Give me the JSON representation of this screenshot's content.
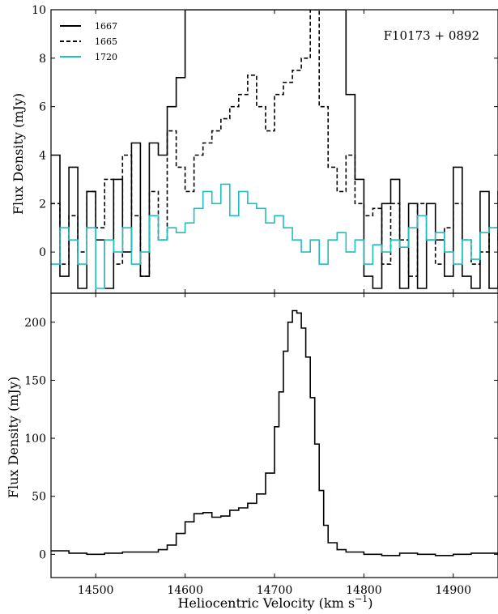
{
  "figure": {
    "object_label": "F10173 + 0892",
    "xlabel": "Heliocentric Velocity (km s",
    "xlabel_sup": "−1",
    "xlabel_close": ")"
  },
  "colors": {
    "black": "#000000",
    "cyan": "#1fbfbf"
  },
  "chart_data": [
    {
      "type": "line",
      "panel": "top",
      "ylabel": "Flux Density (mJy)",
      "xlim": [
        14450,
        14950
      ],
      "ylim": [
        -1.7,
        10
      ],
      "x_ticks": [
        14500,
        14600,
        14700,
        14800,
        14900
      ],
      "y_ticks": [
        0,
        2,
        4,
        6,
        8,
        10
      ],
      "legend": {
        "placement": "top-left"
      },
      "series": [
        {
          "name": "1667",
          "style": "solid",
          "color": "#000000",
          "x": [
            14450,
            14460,
            14470,
            14480,
            14490,
            14500,
            14510,
            14520,
            14530,
            14540,
            14550,
            14560,
            14570,
            14580,
            14590,
            14600,
            14610,
            14620,
            14630,
            14640,
            14650,
            14660,
            14670,
            14680,
            14690,
            14700,
            14710,
            14720,
            14730,
            14740,
            14750,
            14760,
            14770,
            14780,
            14790,
            14800,
            14810,
            14820,
            14830,
            14840,
            14850,
            14860,
            14870,
            14880,
            14890,
            14900,
            14910,
            14920,
            14930,
            14940,
            14950
          ],
          "y": [
            4.0,
            -1.0,
            3.5,
            -1.5,
            2.5,
            0.5,
            -1.5,
            3.0,
            0.0,
            4.5,
            -1.0,
            4.5,
            4.0,
            6.0,
            7.2,
            10.0,
            10.0,
            10.0,
            10.0,
            10.0,
            10.0,
            10.0,
            10.0,
            10.0,
            10.0,
            10.0,
            10.0,
            10.0,
            10.0,
            10.0,
            10.0,
            10.0,
            10.0,
            6.5,
            3.0,
            -1.0,
            -1.5,
            2.0,
            3.0,
            -1.5,
            2.0,
            -1.5,
            2.0,
            0.5,
            -1.0,
            3.5,
            -1.0,
            -1.5,
            2.5,
            -1.5,
            2.5
          ]
        },
        {
          "name": "1665",
          "style": "dashed",
          "color": "#000000",
          "x": [
            14450,
            14460,
            14470,
            14480,
            14490,
            14500,
            14510,
            14520,
            14530,
            14540,
            14550,
            14560,
            14570,
            14580,
            14590,
            14600,
            14610,
            14620,
            14630,
            14640,
            14650,
            14660,
            14670,
            14680,
            14690,
            14700,
            14710,
            14720,
            14730,
            14740,
            14750,
            14760,
            14770,
            14780,
            14790,
            14800,
            14810,
            14820,
            14830,
            14840,
            14850,
            14860,
            14870,
            14880,
            14890,
            14900,
            14910,
            14920,
            14930,
            14940,
            14950
          ],
          "y": [
            2.0,
            -0.5,
            1.5,
            0.0,
            2.5,
            1.0,
            3.0,
            -0.5,
            4.0,
            1.5,
            -1.0,
            2.5,
            0.5,
            5.0,
            3.5,
            2.5,
            4.0,
            4.5,
            5.0,
            5.5,
            6.0,
            6.5,
            7.3,
            6.0,
            5.0,
            6.5,
            7.0,
            7.5,
            8.0,
            10.0,
            6.0,
            3.5,
            2.5,
            4.0,
            2.0,
            1.5,
            1.8,
            -0.5,
            2.0,
            0.5,
            -1.0,
            2.0,
            0.5,
            -0.5,
            1.0,
            2.0,
            0.5,
            -0.5,
            0.0,
            1.0,
            0.5
          ]
        },
        {
          "name": "1720",
          "style": "solid",
          "color": "#1fbfbf",
          "x": [
            14450,
            14460,
            14470,
            14480,
            14490,
            14500,
            14510,
            14520,
            14530,
            14540,
            14550,
            14560,
            14570,
            14580,
            14590,
            14600,
            14610,
            14620,
            14630,
            14640,
            14650,
            14660,
            14670,
            14680,
            14690,
            14700,
            14710,
            14720,
            14730,
            14740,
            14750,
            14760,
            14770,
            14780,
            14790,
            14800,
            14810,
            14820,
            14830,
            14840,
            14850,
            14860,
            14870,
            14880,
            14890,
            14900,
            14910,
            14920,
            14930,
            14940,
            14950
          ],
          "y": [
            -0.5,
            1.0,
            0.5,
            -0.5,
            1.0,
            -1.5,
            0.5,
            0.0,
            1.0,
            -0.5,
            0.0,
            1.5,
            0.5,
            1.0,
            0.8,
            1.2,
            1.8,
            2.5,
            2.0,
            2.8,
            1.5,
            2.5,
            2.0,
            1.8,
            1.2,
            1.5,
            1.0,
            0.5,
            0.0,
            0.5,
            -0.5,
            0.5,
            0.8,
            0.0,
            0.5,
            -0.5,
            0.3,
            0.0,
            0.5,
            0.2,
            1.0,
            1.5,
            0.5,
            0.8,
            0.0,
            -0.5,
            0.5,
            -0.3,
            0.8,
            1.0,
            0.8
          ]
        }
      ]
    },
    {
      "type": "line",
      "panel": "bottom",
      "ylabel": "Flux Density (mJy)",
      "xlim": [
        14450,
        14950
      ],
      "ylim": [
        -20,
        225
      ],
      "x_ticks": [
        14500,
        14600,
        14700,
        14800,
        14900
      ],
      "y_ticks": [
        0,
        50,
        100,
        150,
        200
      ],
      "series": [
        {
          "name": "",
          "style": "solid",
          "color": "#000000",
          "x": [
            14450,
            14470,
            14490,
            14510,
            14530,
            14550,
            14570,
            14580,
            14590,
            14600,
            14610,
            14620,
            14630,
            14640,
            14650,
            14660,
            14670,
            14680,
            14690,
            14700,
            14705,
            14710,
            14715,
            14720,
            14725,
            14730,
            14735,
            14740,
            14745,
            14750,
            14755,
            14760,
            14770,
            14780,
            14800,
            14820,
            14840,
            14860,
            14880,
            14900,
            14920,
            14950
          ],
          "y": [
            3,
            1,
            0,
            1,
            2,
            2,
            4,
            8,
            18,
            28,
            35,
            36,
            32,
            33,
            38,
            40,
            44,
            52,
            70,
            110,
            140,
            175,
            200,
            210,
            208,
            195,
            170,
            135,
            95,
            55,
            25,
            10,
            4,
            2,
            0,
            -1,
            1,
            0,
            -1,
            0,
            1,
            0
          ]
        }
      ]
    }
  ]
}
